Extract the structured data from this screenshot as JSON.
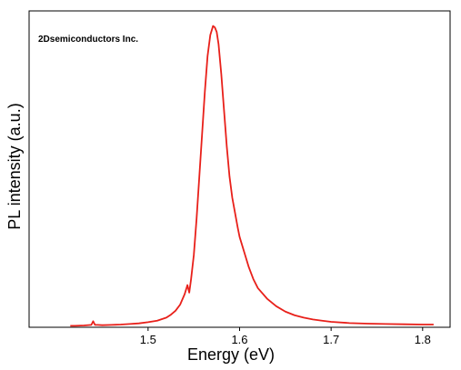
{
  "chart_data": {
    "type": "line",
    "title": "",
    "xlabel": "Energy (eV)",
    "ylabel": "PL intensity (a.u.)",
    "annotation": "2Dsemiconductors Inc.",
    "xlim": [
      1.37,
      1.83
    ],
    "ylim": [
      0,
      1.05
    ],
    "x_ticks": [
      "1.5",
      "1.6",
      "1.7",
      "1.8"
    ],
    "grid": false,
    "legend": "none",
    "series": [
      {
        "color": "#e8201a",
        "x": [
          1.415,
          1.42,
          1.43,
          1.438,
          1.44,
          1.442,
          1.445,
          1.45,
          1.46,
          1.47,
          1.48,
          1.49,
          1.5,
          1.51,
          1.52,
          1.525,
          1.53,
          1.535,
          1.54,
          1.543,
          1.545,
          1.547,
          1.55,
          1.553,
          1.556,
          1.559,
          1.562,
          1.565,
          1.568,
          1.571,
          1.573,
          1.575,
          1.577,
          1.58,
          1.583,
          1.586,
          1.589,
          1.592,
          1.595,
          1.598,
          1.6,
          1.605,
          1.61,
          1.615,
          1.62,
          1.63,
          1.64,
          1.65,
          1.66,
          1.67,
          1.68,
          1.69,
          1.7,
          1.72,
          1.74,
          1.76,
          1.78,
          1.8,
          1.812
        ],
        "y": [
          0.005,
          0.005,
          0.006,
          0.008,
          0.02,
          0.008,
          0.008,
          0.007,
          0.008,
          0.009,
          0.011,
          0.013,
          0.017,
          0.022,
          0.032,
          0.042,
          0.055,
          0.075,
          0.11,
          0.14,
          0.115,
          0.16,
          0.24,
          0.36,
          0.5,
          0.64,
          0.78,
          0.9,
          0.97,
          1.0,
          0.995,
          0.98,
          0.94,
          0.84,
          0.72,
          0.6,
          0.5,
          0.43,
          0.38,
          0.33,
          0.3,
          0.25,
          0.2,
          0.16,
          0.13,
          0.095,
          0.07,
          0.052,
          0.04,
          0.032,
          0.026,
          0.022,
          0.018,
          0.014,
          0.012,
          0.011,
          0.01,
          0.009,
          0.009
        ]
      }
    ]
  }
}
